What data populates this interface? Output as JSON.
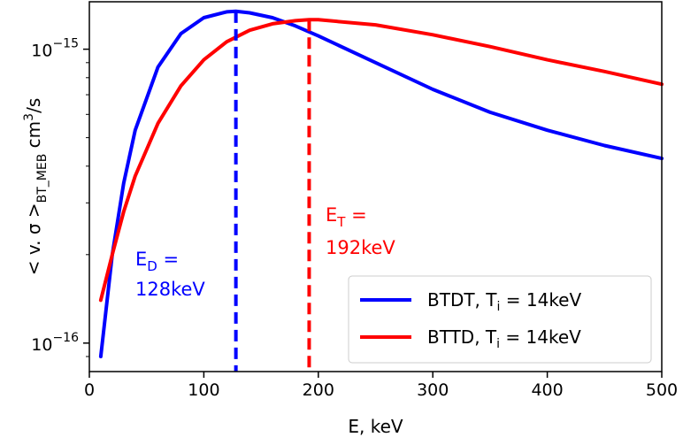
{
  "chart_data": {
    "type": "line",
    "title": "",
    "xlabel": "E, keV",
    "ylabel": {
      "prefix": "< v. σ >",
      "subscript": "BT_MEB",
      "suffix": " cm",
      "superscript": "3",
      "tail": "/s"
    },
    "xlim": [
      0,
      500
    ],
    "ylim": [
      8e-17,
      1.45e-15
    ],
    "yscale": "log",
    "grid": false,
    "legend_position": "lower-right",
    "x_ticks": [
      0,
      100,
      200,
      300,
      400,
      500
    ],
    "x_tick_labels": [
      "0",
      "100",
      "200",
      "300",
      "400",
      "500"
    ],
    "y_ticks": [
      {
        "value": 1e-15,
        "base": "10",
        "exp": "−15"
      },
      {
        "value": 1e-16,
        "base": "10",
        "exp": "−16"
      }
    ],
    "series": [
      {
        "name": "BTDT, T",
        "name_sub": "i",
        "name_suffix": " =  14keV",
        "color": "#0000ff",
        "x": [
          10,
          20,
          30,
          40,
          60,
          80,
          100,
          120,
          128,
          140,
          160,
          180,
          200,
          250,
          300,
          350,
          400,
          450,
          500
        ],
        "y": [
          9e-17,
          2e-16,
          3.5e-16,
          5.3e-16,
          8.7e-16,
          1.13e-15,
          1.28e-15,
          1.34e-15,
          1.345e-15,
          1.33e-15,
          1.28e-15,
          1.2e-15,
          1.11e-15,
          9e-16,
          7.3e-16,
          6.1e-16,
          5.3e-16,
          4.7e-16,
          4.25e-16
        ]
      },
      {
        "name": "BTTD, T",
        "name_sub": "i",
        "name_suffix": " =  14keV",
        "color": "#ff0000",
        "x": [
          10,
          20,
          30,
          40,
          60,
          80,
          100,
          120,
          140,
          160,
          180,
          192,
          200,
          250,
          300,
          350,
          400,
          450,
          500
        ],
        "y": [
          1.4e-16,
          2e-16,
          2.8e-16,
          3.7e-16,
          5.6e-16,
          7.5e-16,
          9.2e-16,
          1.06e-15,
          1.16e-15,
          1.22e-15,
          1.25e-15,
          1.26e-15,
          1.26e-15,
          1.21e-15,
          1.12e-15,
          1.02e-15,
          9.2e-16,
          8.4e-16,
          7.6e-16
        ]
      }
    ],
    "markers": [
      {
        "x": 128,
        "color": "#0000ff",
        "line1_main": "E",
        "line1_sub": "D",
        "line1_suffix": " =",
        "line2": "128keV"
      },
      {
        "x": 192,
        "color": "#ff0000",
        "line1_main": "E",
        "line1_sub": "T",
        "line1_suffix": " =",
        "line2": "192keV"
      }
    ]
  }
}
